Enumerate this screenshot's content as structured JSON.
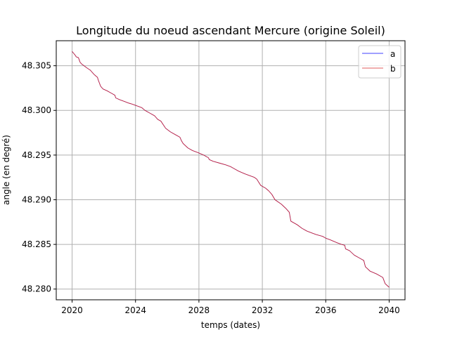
{
  "chart_data": {
    "type": "line",
    "title": "Longitude du noeud ascendant Mercure (origine Soleil)",
    "xlabel": "temps (dates)",
    "ylabel": "angle (en degré)",
    "xlim": [
      2019,
      2041
    ],
    "ylim": [
      48.2788,
      48.3078
    ],
    "xticks": [
      2020,
      2024,
      2028,
      2032,
      2036,
      2040
    ],
    "xtick_labels": [
      "2020",
      "2024",
      "2028",
      "2032",
      "2036",
      "2040"
    ],
    "yticks": [
      48.28,
      48.285,
      48.29,
      48.295,
      48.3,
      48.305
    ],
    "ytick_labels": [
      "48.280",
      "48.285",
      "48.290",
      "48.295",
      "48.300",
      "48.305"
    ],
    "grid": true,
    "legend_position": "top-right",
    "x": [
      2020.0,
      2020.23,
      2020.25,
      2020.4,
      2020.5,
      2020.6,
      2020.9,
      2021.15,
      2021.4,
      2021.6,
      2021.65,
      2021.8,
      2021.95,
      2022.2,
      2022.5,
      2022.7,
      2022.75,
      2023.0,
      2023.3,
      2023.6,
      2023.8,
      2024.1,
      2024.4,
      2024.6,
      2024.9,
      2025.2,
      2025.4,
      2025.6,
      2025.75,
      2025.9,
      2026.2,
      2026.5,
      2026.8,
      2026.9,
      2027.0,
      2027.3,
      2027.6,
      2027.9,
      2028.3,
      2028.6,
      2028.65,
      2028.9,
      2029.3,
      2029.7,
      2030.0,
      2030.2,
      2030.5,
      2030.9,
      2031.2,
      2031.5,
      2031.65,
      2031.9,
      2032.2,
      2032.4,
      2032.6,
      2032.8,
      2033.2,
      2033.5,
      2033.7,
      2033.8,
      2034.2,
      2034.5,
      2034.8,
      2035.1,
      2035.4,
      2035.8,
      2036.0,
      2036.3,
      2036.7,
      2037.0,
      2037.2,
      2037.25,
      2037.5,
      2037.8,
      2038.1,
      2038.4,
      2038.5,
      2038.8,
      2039.2,
      2039.6,
      2039.75,
      2040.0
    ],
    "series": [
      {
        "name": "a",
        "color": "#0000ff",
        "values": [
          48.3066,
          48.3061,
          48.306,
          48.3059,
          48.3054,
          48.3052,
          48.3048,
          48.3045,
          48.304,
          48.3037,
          48.3034,
          48.3027,
          48.3024,
          48.3022,
          48.3019,
          48.3017,
          48.3014,
          48.3012,
          48.301,
          48.3008,
          48.3007,
          48.3005,
          48.3003,
          48.3,
          48.2997,
          48.2994,
          48.299,
          48.2988,
          48.2984,
          48.298,
          48.2976,
          48.2973,
          48.297,
          48.2966,
          48.2963,
          48.2958,
          48.2955,
          48.2953,
          48.295,
          48.2947,
          48.2945,
          48.2943,
          48.2941,
          48.2939,
          48.2937,
          48.2935,
          48.2932,
          48.2929,
          48.2927,
          48.2925,
          48.2923,
          48.2916,
          48.2913,
          48.291,
          48.2906,
          48.29,
          48.2895,
          48.289,
          48.2886,
          48.2876,
          48.2872,
          48.2868,
          48.2865,
          48.2863,
          48.2861,
          48.2859,
          48.2857,
          48.2855,
          48.2852,
          48.285,
          48.2849,
          48.2845,
          48.2843,
          48.2838,
          48.2835,
          48.2832,
          48.2825,
          48.282,
          48.2817,
          48.2813,
          48.2806,
          48.2802
        ]
      },
      {
        "name": "b",
        "color": "#d62728",
        "values": [
          48.3066,
          48.3061,
          48.306,
          48.3059,
          48.3054,
          48.3052,
          48.3048,
          48.3045,
          48.304,
          48.3037,
          48.3034,
          48.3027,
          48.3024,
          48.3022,
          48.3019,
          48.3017,
          48.3014,
          48.3012,
          48.301,
          48.3008,
          48.3007,
          48.3005,
          48.3003,
          48.3,
          48.2997,
          48.2994,
          48.299,
          48.2988,
          48.2984,
          48.298,
          48.2976,
          48.2973,
          48.297,
          48.2966,
          48.2963,
          48.2958,
          48.2955,
          48.2953,
          48.295,
          48.2947,
          48.2945,
          48.2943,
          48.2941,
          48.2939,
          48.2937,
          48.2935,
          48.2932,
          48.2929,
          48.2927,
          48.2925,
          48.2923,
          48.2916,
          48.2913,
          48.291,
          48.2906,
          48.29,
          48.2895,
          48.289,
          48.2886,
          48.2876,
          48.2872,
          48.2868,
          48.2865,
          48.2863,
          48.2861,
          48.2859,
          48.2857,
          48.2855,
          48.2852,
          48.285,
          48.2849,
          48.2845,
          48.2843,
          48.2838,
          48.2835,
          48.2832,
          48.2825,
          48.282,
          48.2817,
          48.2813,
          48.2806,
          48.2802
        ]
      }
    ]
  }
}
